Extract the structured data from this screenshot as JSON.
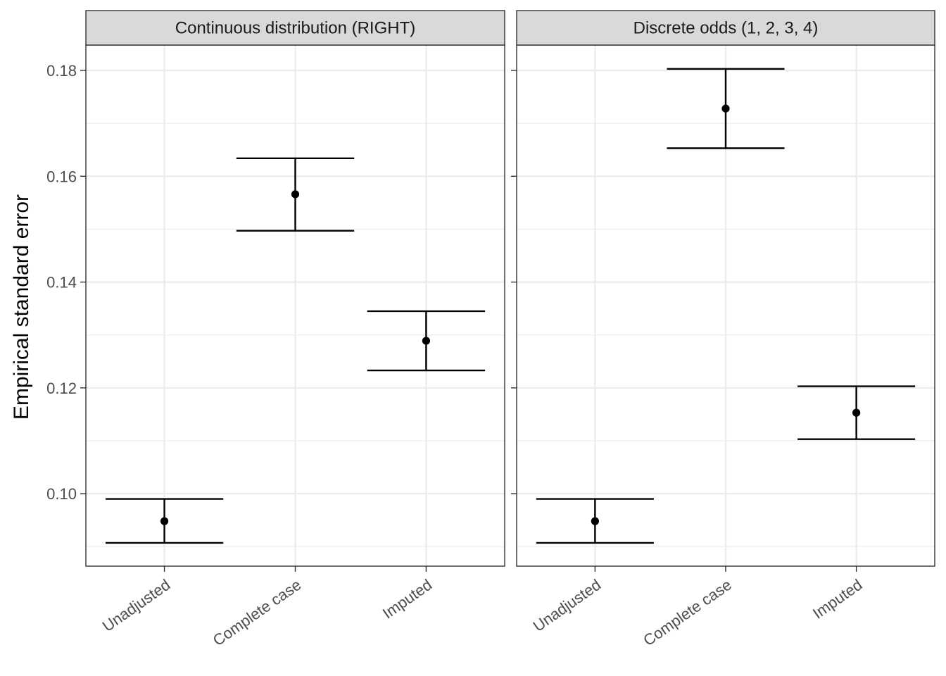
{
  "chart_data": {
    "type": "errorbar",
    "ylabel": "Empirical standard error",
    "xlabel": "",
    "categories": [
      "Unadjusted",
      "Complete case",
      "Imputed"
    ],
    "ylim": [
      0.0863,
      0.1848
    ],
    "yticks": [
      0.1,
      0.12,
      0.14,
      0.16,
      0.18
    ],
    "ytick_labels": [
      "0.10",
      "0.12",
      "0.14",
      "0.16",
      "0.18"
    ],
    "grid": true,
    "legend": "none",
    "panels": [
      {
        "title": "Continuous distribution (RIGHT)",
        "points": [
          {
            "category": "Unadjusted",
            "value": 0.0948,
            "lower": 0.0907,
            "upper": 0.099
          },
          {
            "category": "Complete case",
            "value": 0.1566,
            "lower": 0.1497,
            "upper": 0.1634
          },
          {
            "category": "Imputed",
            "value": 0.1289,
            "lower": 0.1233,
            "upper": 0.1345
          }
        ]
      },
      {
        "title": "Discrete odds (1, 2, 3, 4)",
        "points": [
          {
            "category": "Unadjusted",
            "value": 0.0948,
            "lower": 0.0907,
            "upper": 0.099
          },
          {
            "category": "Complete case",
            "value": 0.1728,
            "lower": 0.1653,
            "upper": 0.1803
          },
          {
            "category": "Imputed",
            "value": 0.1153,
            "lower": 0.1103,
            "upper": 0.1203
          }
        ]
      }
    ]
  }
}
